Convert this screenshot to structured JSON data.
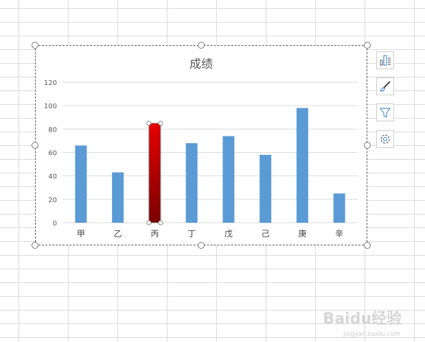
{
  "chart_data": {
    "type": "bar",
    "title": "成绩",
    "categories": [
      "甲",
      "乙",
      "丙",
      "丁",
      "戊",
      "己",
      "庚",
      "辛"
    ],
    "values": [
      66,
      43,
      85,
      68,
      74,
      58,
      98,
      25
    ],
    "ylim": [
      0,
      120
    ],
    "yticks": [
      0,
      20,
      40,
      60,
      80,
      100,
      120
    ],
    "grid": true,
    "colors": {
      "bar": "#5b9bd5",
      "highlight_top": "#e60000",
      "highlight_bottom": "#7a0000"
    },
    "highlighted": "丙"
  },
  "side_buttons": [
    "chart-elements-icon",
    "chart-styles-icon",
    "chart-filters-icon",
    "settings-icon"
  ],
  "watermark": {
    "text": "Baidu经验",
    "sub": "jingyan.baidu.com"
  }
}
